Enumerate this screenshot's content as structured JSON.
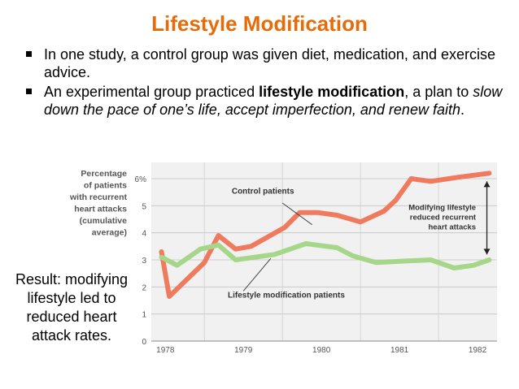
{
  "slide": {
    "title": "Lifestyle Modification",
    "bullet1": "In one study, a control group was given diet, medication, and exercise advice.",
    "bullet2_pre": "An experimental group practiced ",
    "bullet2_bold": "lifestyle modification",
    "bullet2_mid": ", a plan to ",
    "bullet2_italic": "slow down the pace of one’s life, accept imperfection, and renew faith",
    "bullet2_end": ".",
    "result_line1": "Result: modifying",
    "result_line2": "lifestyle led to",
    "result_line3": "reduced heart",
    "result_line4": "attack rates."
  },
  "colors": {
    "title": "#e46c0a",
    "control": "#f07a5e",
    "lifestyle": "#a5d68a",
    "chart_bg": "#f1f1f1"
  },
  "chart_data": {
    "type": "line",
    "ylabel_lines": [
      "Percentage",
      "of patients",
      "with recurrent",
      "heart attacks",
      "(cumulative",
      "average)"
    ],
    "ylim": [
      0,
      6.6
    ],
    "yticks": [
      "0",
      "1",
      "2",
      "3",
      "4",
      "5",
      "6%"
    ],
    "xlim": [
      1977.82,
      1982.25
    ],
    "xticks": [
      "1978",
      "1979",
      "1980",
      "1981",
      "1982"
    ],
    "annotations": {
      "control_label": "Control patients",
      "lifestyle_label": "Lifestyle modification patients",
      "effect_line1": "Modifying lifestyle",
      "effect_line2": "reduced recurrent",
      "effect_line3": "heart attacks"
    },
    "grid": true,
    "series": [
      {
        "name": "Control patients",
        "x": [
          1977.95,
          1978.05,
          1978.5,
          1978.68,
          1978.9,
          1979.1,
          1979.53,
          1979.72,
          1979.95,
          1980.2,
          1980.5,
          1980.8,
          1980.95,
          1981.15,
          1981.4,
          1981.75,
          1982.15
        ],
        "values": [
          3.3,
          1.65,
          2.9,
          3.9,
          3.4,
          3.5,
          4.2,
          4.75,
          4.75,
          4.65,
          4.4,
          4.8,
          5.2,
          6.0,
          5.9,
          6.05,
          6.2
        ]
      },
      {
        "name": "Lifestyle modification patients",
        "x": [
          1977.95,
          1978.15,
          1978.45,
          1978.68,
          1978.9,
          1979.4,
          1979.6,
          1979.8,
          1980.2,
          1980.4,
          1980.7,
          1981.0,
          1981.4,
          1981.7,
          1981.95,
          1982.15
        ],
        "values": [
          3.1,
          2.8,
          3.4,
          3.55,
          3.0,
          3.2,
          3.4,
          3.6,
          3.45,
          3.15,
          2.9,
          2.95,
          3.0,
          2.7,
          2.8,
          3.0
        ]
      }
    ]
  }
}
